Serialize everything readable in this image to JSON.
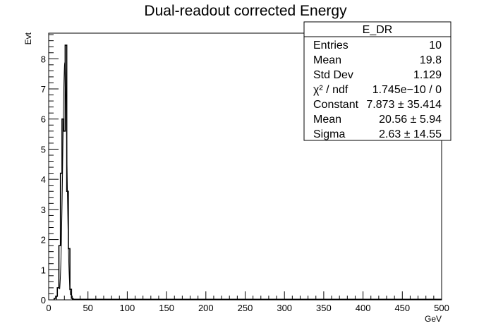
{
  "chart_data": {
    "type": "histogram",
    "title": "Dual-readout corrected Energy",
    "xlabel": "GeV",
    "ylabel": "Evt",
    "xlim": [
      0,
      500
    ],
    "ylim": [
      0,
      8.85
    ],
    "x_ticks": [
      "0",
      "50",
      "100",
      "150",
      "200",
      "250",
      "300",
      "350",
      "400",
      "450",
      "500"
    ],
    "y_ticks": [
      "0",
      "1",
      "2",
      "3",
      "4",
      "5",
      "6",
      "7",
      "8"
    ],
    "grid": false,
    "histogram": {
      "bin_width": 2,
      "bins": [
        {
          "x": 8,
          "y": 0.05
        },
        {
          "x": 10,
          "y": 0.12
        },
        {
          "x": 12,
          "y": 0.4
        },
        {
          "x": 14,
          "y": 1.8
        },
        {
          "x": 16,
          "y": 4.2
        },
        {
          "x": 18,
          "y": 6.0
        },
        {
          "x": 20,
          "y": 5.6
        },
        {
          "x": 22,
          "y": 8.45
        },
        {
          "x": 24,
          "y": 3.6
        },
        {
          "x": 26,
          "y": 1.7
        },
        {
          "x": 28,
          "y": 0.35
        },
        {
          "x": 30,
          "y": 0.05
        }
      ]
    },
    "fit_curve": {
      "type": "gaussian",
      "constant": 7.873,
      "mean": 20.56,
      "sigma": 2.63,
      "x_range": [
        14,
        28
      ]
    },
    "stats_box": {
      "name": "E_DR",
      "rows": [
        {
          "label": "Entries",
          "value": "10"
        },
        {
          "label": "Mean",
          "value": "19.8"
        },
        {
          "label": "Std Dev",
          "value": "1.129"
        },
        {
          "label": "χ² / ndf",
          "value": "1.745e−10 / 0"
        },
        {
          "label": "Constant",
          "value": "7.873 ± 35.414"
        },
        {
          "label": "Mean",
          "value": "20.56 ± 5.94"
        },
        {
          "label": "Sigma",
          "value": "2.63 ± 14.55"
        }
      ]
    }
  }
}
